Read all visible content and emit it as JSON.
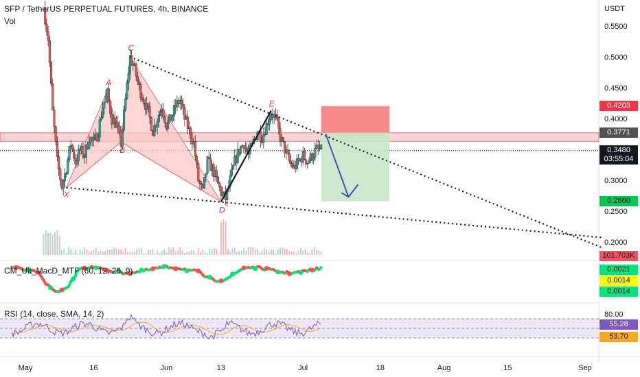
{
  "header": {
    "symbol_title": "SFP / TetherUS PERPETUAL FUTURES, 4h, BINANCE",
    "vol_label": "Vol",
    "macd_label": "CM_Ult_MacD_MTF (60, 12, 26, 9)",
    "rsi_label": "RSI (14, close, SMA, 14, 2)"
  },
  "chart_data": {
    "type": "line",
    "title": "SFP / TetherUS PERPETUAL FUTURES, 4h, BINANCE",
    "currency": "USDT",
    "y_ticks": [
      "0.5500",
      "0.5000",
      "0.4500",
      "0.4000",
      "0.3500",
      "0.3000",
      "0.2500",
      "0.2000"
    ],
    "y_tick_values": [
      0.55,
      0.5,
      0.45,
      0.4,
      0.35,
      0.3,
      0.25,
      0.2
    ],
    "ylim": [
      0.18,
      0.58
    ],
    "x_ticks": [
      "May",
      "16",
      "Jun",
      "13",
      "Jul",
      "18",
      "Aug",
      "15",
      "Sep"
    ],
    "x_tick_days": [
      0,
      15,
      31,
      43,
      61,
      78,
      92,
      106,
      123
    ],
    "xlim_days": [
      -3,
      128
    ],
    "price_path": [
      {
        "day": 4,
        "price": 0.58
      },
      {
        "day": 5,
        "price": 0.53
      },
      {
        "day": 6,
        "price": 0.41
      },
      {
        "day": 7,
        "price": 0.33
      },
      {
        "day": 8,
        "price": 0.29
      },
      {
        "day": 9,
        "price": 0.32
      },
      {
        "day": 10,
        "price": 0.36
      },
      {
        "day": 11,
        "price": 0.33
      },
      {
        "day": 12,
        "price": 0.35
      },
      {
        "day": 13,
        "price": 0.34
      },
      {
        "day": 14,
        "price": 0.37
      },
      {
        "day": 15,
        "price": 0.36
      },
      {
        "day": 16,
        "price": 0.38
      },
      {
        "day": 17,
        "price": 0.42
      },
      {
        "day": 18,
        "price": 0.44
      },
      {
        "day": 19,
        "price": 0.4
      },
      {
        "day": 20,
        "price": 0.39
      },
      {
        "day": 21,
        "price": 0.36
      },
      {
        "day": 22,
        "price": 0.43
      },
      {
        "day": 23,
        "price": 0.5
      },
      {
        "day": 24,
        "price": 0.48
      },
      {
        "day": 25,
        "price": 0.45
      },
      {
        "day": 26,
        "price": 0.43
      },
      {
        "day": 27,
        "price": 0.41
      },
      {
        "day": 28,
        "price": 0.38
      },
      {
        "day": 29,
        "price": 0.4
      },
      {
        "day": 30,
        "price": 0.42
      },
      {
        "day": 31,
        "price": 0.39
      },
      {
        "day": 32,
        "price": 0.4
      },
      {
        "day": 33,
        "price": 0.42
      },
      {
        "day": 34,
        "price": 0.43
      },
      {
        "day": 35,
        "price": 0.4
      },
      {
        "day": 36,
        "price": 0.38
      },
      {
        "day": 37,
        "price": 0.36
      },
      {
        "day": 38,
        "price": 0.3
      },
      {
        "day": 39,
        "price": 0.28
      },
      {
        "day": 40,
        "price": 0.33
      },
      {
        "day": 41,
        "price": 0.32
      },
      {
        "day": 42,
        "price": 0.3
      },
      {
        "day": 43,
        "price": 0.28
      },
      {
        "day": 44,
        "price": 0.27
      },
      {
        "day": 45,
        "price": 0.3
      },
      {
        "day": 46,
        "price": 0.33
      },
      {
        "day": 47,
        "price": 0.35
      },
      {
        "day": 48,
        "price": 0.36
      },
      {
        "day": 49,
        "price": 0.34
      },
      {
        "day": 50,
        "price": 0.36
      },
      {
        "day": 51,
        "price": 0.38
      },
      {
        "day": 52,
        "price": 0.37
      },
      {
        "day": 53,
        "price": 0.39
      },
      {
        "day": 54,
        "price": 0.41
      },
      {
        "day": 55,
        "price": 0.4
      },
      {
        "day": 56,
        "price": 0.37
      },
      {
        "day": 57,
        "price": 0.35
      },
      {
        "day": 58,
        "price": 0.33
      },
      {
        "day": 59,
        "price": 0.32
      },
      {
        "day": 60,
        "price": 0.33
      },
      {
        "day": 61,
        "price": 0.34
      },
      {
        "day": 62,
        "price": 0.33
      },
      {
        "day": 63,
        "price": 0.34
      },
      {
        "day": 64,
        "price": 0.35
      },
      {
        "day": 65,
        "price": 0.348
      }
    ],
    "candles_note_colors": {
      "up": "#26a69a",
      "down": "#ef5350"
    },
    "harmonic_pattern": {
      "points": [
        {
          "label": "X",
          "day": 9,
          "price": 0.288
        },
        {
          "label": "A",
          "day": 18,
          "price": 0.445
        },
        {
          "label": "B",
          "day": 21,
          "price": 0.362
        },
        {
          "label": "C",
          "day": 23,
          "price": 0.5
        },
        {
          "label": "D",
          "day": 43,
          "price": 0.265
        },
        {
          "label": "E",
          "day": 54,
          "price": 0.413
        }
      ],
      "fill_color": "#f8c8c8",
      "label_color": "#e53935"
    },
    "trendlines": [
      {
        "from": {
          "day": 23,
          "price": 0.5
        },
        "to": {
          "day": 127,
          "price": 0.19
        }
      },
      {
        "from": {
          "day": 9,
          "price": 0.288
        },
        "to": {
          "day": 127,
          "price": 0.207
        }
      }
    ],
    "resistance_zone": {
      "low": 0.363,
      "high": 0.377,
      "color": "#f5b8b8"
    },
    "dotted_level": 0.348,
    "short_position": {
      "start_day": 65,
      "end_day": 80,
      "entry": 0.3771,
      "stop": 0.4203,
      "target": 0.266,
      "stop_color": "#f77c80",
      "target_color": "#c8e6c9"
    },
    "forecast_arrow": {
      "from": {
        "day": 66,
        "price": 0.375
      },
      "to": {
        "day": 71,
        "price": 0.273
      },
      "color": "#3f51b5"
    },
    "price_tags": [
      {
        "value": "0.4203",
        "price": 0.4203,
        "bg": "#f23645",
        "fg": "#ffffff"
      },
      {
        "value": "0.3771",
        "price": 0.3771,
        "bg": "#525252",
        "fg": "#ffffff"
      },
      {
        "value": "0.3480",
        "price": 0.348,
        "bg": "#131722",
        "fg": "#ffffff"
      },
      {
        "value": "03:55:04",
        "price": 0.3335,
        "bg": "#131722",
        "fg": "#ffffff"
      },
      {
        "value": "0.2660",
        "price": 0.266,
        "bg": "#00c853",
        "fg": "#131722"
      }
    ],
    "volume_tag": {
      "value": "101.703K",
      "bg": "#f7525f"
    },
    "macd": {
      "tags": [
        {
          "value": "0.0021",
          "bg": "#00e676"
        },
        {
          "value": "0.0014",
          "bg": "#ffff00"
        },
        {
          "value": "0.0014",
          "bg": "#00e676"
        }
      ]
    },
    "rsi": {
      "levels": [
        70,
        50,
        30
      ],
      "top_tick": "80.00",
      "value": "55.28",
      "sma_value": "53.70",
      "line_color": "#7e57c2",
      "sma_color": "#f9a825",
      "band_color": "#ede7f6"
    }
  }
}
